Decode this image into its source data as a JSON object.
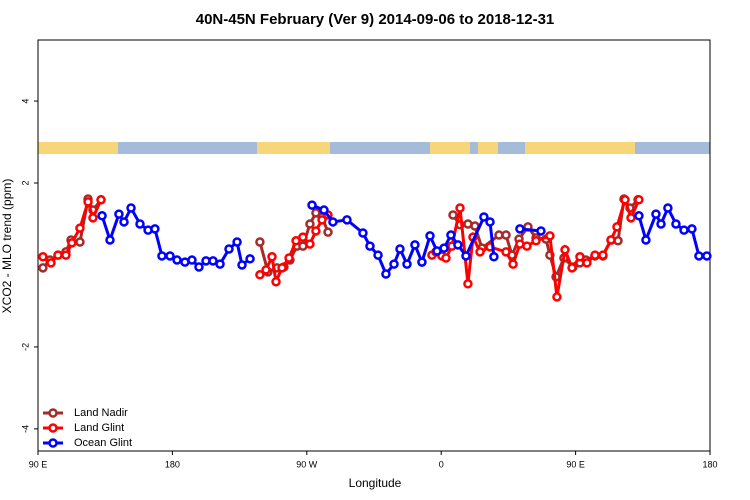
{
  "chart_data": {
    "type": "line",
    "title": "40N-45N February (Ver 9)   2014-09-06 to 2018-12-31",
    "x_label": "Longitude",
    "y_label": "XCO2 - MLO trend (ppm)",
    "xlim": [
      90,
      540
    ],
    "ylim": [
      -4.54,
      5.49
    ],
    "xticks": [
      {
        "value": 90,
        "label": "90 E"
      },
      {
        "value": 180,
        "label": "180"
      },
      {
        "value": 270,
        "label": "90 W"
      },
      {
        "value": 360,
        "label": "0"
      },
      {
        "value": 450,
        "label": "90 E"
      },
      {
        "value": 540,
        "label": "180"
      }
    ],
    "yticks": [
      -4,
      -2,
      2,
      4
    ],
    "legend": "bottom-left",
    "series": [
      {
        "name": "Land Nadir",
        "color": "#a52a2a",
        "x": [
          93.3,
          98.0,
          103.4,
          108.7,
          112.1,
          118.1,
          123.5,
          126.8,
          132.2,
          null,
          238.6,
          244.0,
          250.0,
          254.7,
          258.7,
          263.4,
          267.4,
          272.1,
          276.1,
          280.2,
          284.2,
          null,
          367.9,
          372.6,
          377.9,
          382.6,
          387.3,
          398.7,
          403.4,
          407.4,
          412.1,
          418.1,
          423.5,
          430.2,
          432.8,
          436.9,
          442.2,
          448.2,
          452.9,
          456.9,
          463.0,
          468.3,
          473.7,
          478.4,
          482.4,
          486.4,
          491.8
        ],
        "values": [
          -0.07,
          0.12,
          0.24,
          0.32,
          0.61,
          0.56,
          1.61,
          1.34,
          1.59,
          null,
          0.56,
          -0.17,
          -0.07,
          -0.05,
          0.12,
          0.46,
          0.46,
          1.0,
          1.27,
          1.17,
          0.8,
          null,
          1.22,
          0.98,
          1.0,
          0.95,
          0.41,
          0.73,
          0.73,
          0.24,
          0.63,
          0.93,
          0.66,
          0.63,
          0.24,
          -0.29,
          0.17,
          -0.05,
          0.05,
          0.12,
          0.22,
          0.22,
          0.61,
          0.59,
          1.61,
          1.39,
          1.59
        ]
      },
      {
        "name": "Land Glint",
        "color": "#ff0000",
        "x": [
          93.3,
          98.7,
          103.4,
          108.7,
          112.7,
          118.1,
          123.5,
          126.8,
          132.2,
          null,
          238.6,
          242.7,
          246.7,
          249.4,
          253.4,
          258.1,
          262.8,
          267.4,
          272.1,
          276.1,
          280.2,
          284.2,
          null,
          353.8,
          356.5,
          360.5,
          363.2,
          367.2,
          372.6,
          377.9,
          381.3,
          386.0,
          392.7,
          403.4,
          408.1,
          412.7,
          417.4,
          423.5,
          432.8,
          437.5,
          442.9,
          447.6,
          452.9,
          457.6,
          463.0,
          468.3,
          473.7,
          477.7,
          483.1,
          487.1,
          492.4
        ],
        "values": [
          0.2,
          0.05,
          0.24,
          0.24,
          0.54,
          0.9,
          1.54,
          1.15,
          1.59,
          null,
          -0.24,
          -0.12,
          0.2,
          -0.41,
          -0.07,
          0.17,
          0.59,
          0.68,
          0.51,
          0.83,
          1.1,
          1.22,
          null,
          0.24,
          0.32,
          0.22,
          0.17,
          0.46,
          1.39,
          -0.46,
          0.68,
          0.32,
          0.44,
          0.32,
          0.02,
          0.51,
          0.46,
          0.59,
          0.71,
          -0.78,
          0.37,
          -0.07,
          0.2,
          0.05,
          0.24,
          0.24,
          0.61,
          0.93,
          1.59,
          1.15,
          1.59
        ]
      },
      {
        "name": "Ocean Glint",
        "color": "#0000ff",
        "x": [
          132.9,
          138.2,
          144.2,
          147.6,
          152.3,
          158.3,
          163.7,
          168.3,
          173.0,
          178.4,
          183.1,
          188.4,
          193.1,
          197.8,
          202.5,
          207.2,
          211.9,
          217.9,
          223.3,
          226.6,
          232.0,
          null,
          273.5,
          281.5,
          287.5,
          296.9,
          307.6,
          312.3,
          317.7,
          323.0,
          328.4,
          332.4,
          337.1,
          342.4,
          347.1,
          352.5,
          357.2,
          361.9,
          366.5,
          371.2,
          376.6,
          388.6,
          392.7,
          395.3,
          null,
          412.7,
          426.8,
          null,
          492.4,
          497.1,
          503.8,
          507.2,
          511.8,
          517.2,
          522.6,
          527.9,
          532.6,
          537.9
        ],
        "values": [
          1.2,
          0.61,
          1.24,
          1.05,
          1.39,
          1.0,
          0.85,
          0.88,
          0.22,
          0.22,
          0.12,
          0.07,
          0.12,
          -0.05,
          0.1,
          0.1,
          0.02,
          0.39,
          0.56,
          0.0,
          0.15,
          null,
          1.46,
          1.34,
          1.05,
          1.1,
          0.78,
          0.46,
          0.24,
          -0.22,
          0.02,
          0.39,
          0.02,
          0.49,
          0.07,
          0.71,
          0.34,
          0.41,
          0.73,
          0.49,
          0.22,
          1.17,
          1.05,
          0.2,
          null,
          0.88,
          0.83,
          null,
          1.2,
          0.61,
          1.24,
          1.0,
          1.39,
          1.0,
          0.85,
          0.88,
          0.22,
          0.22
        ]
      }
    ]
  }
}
